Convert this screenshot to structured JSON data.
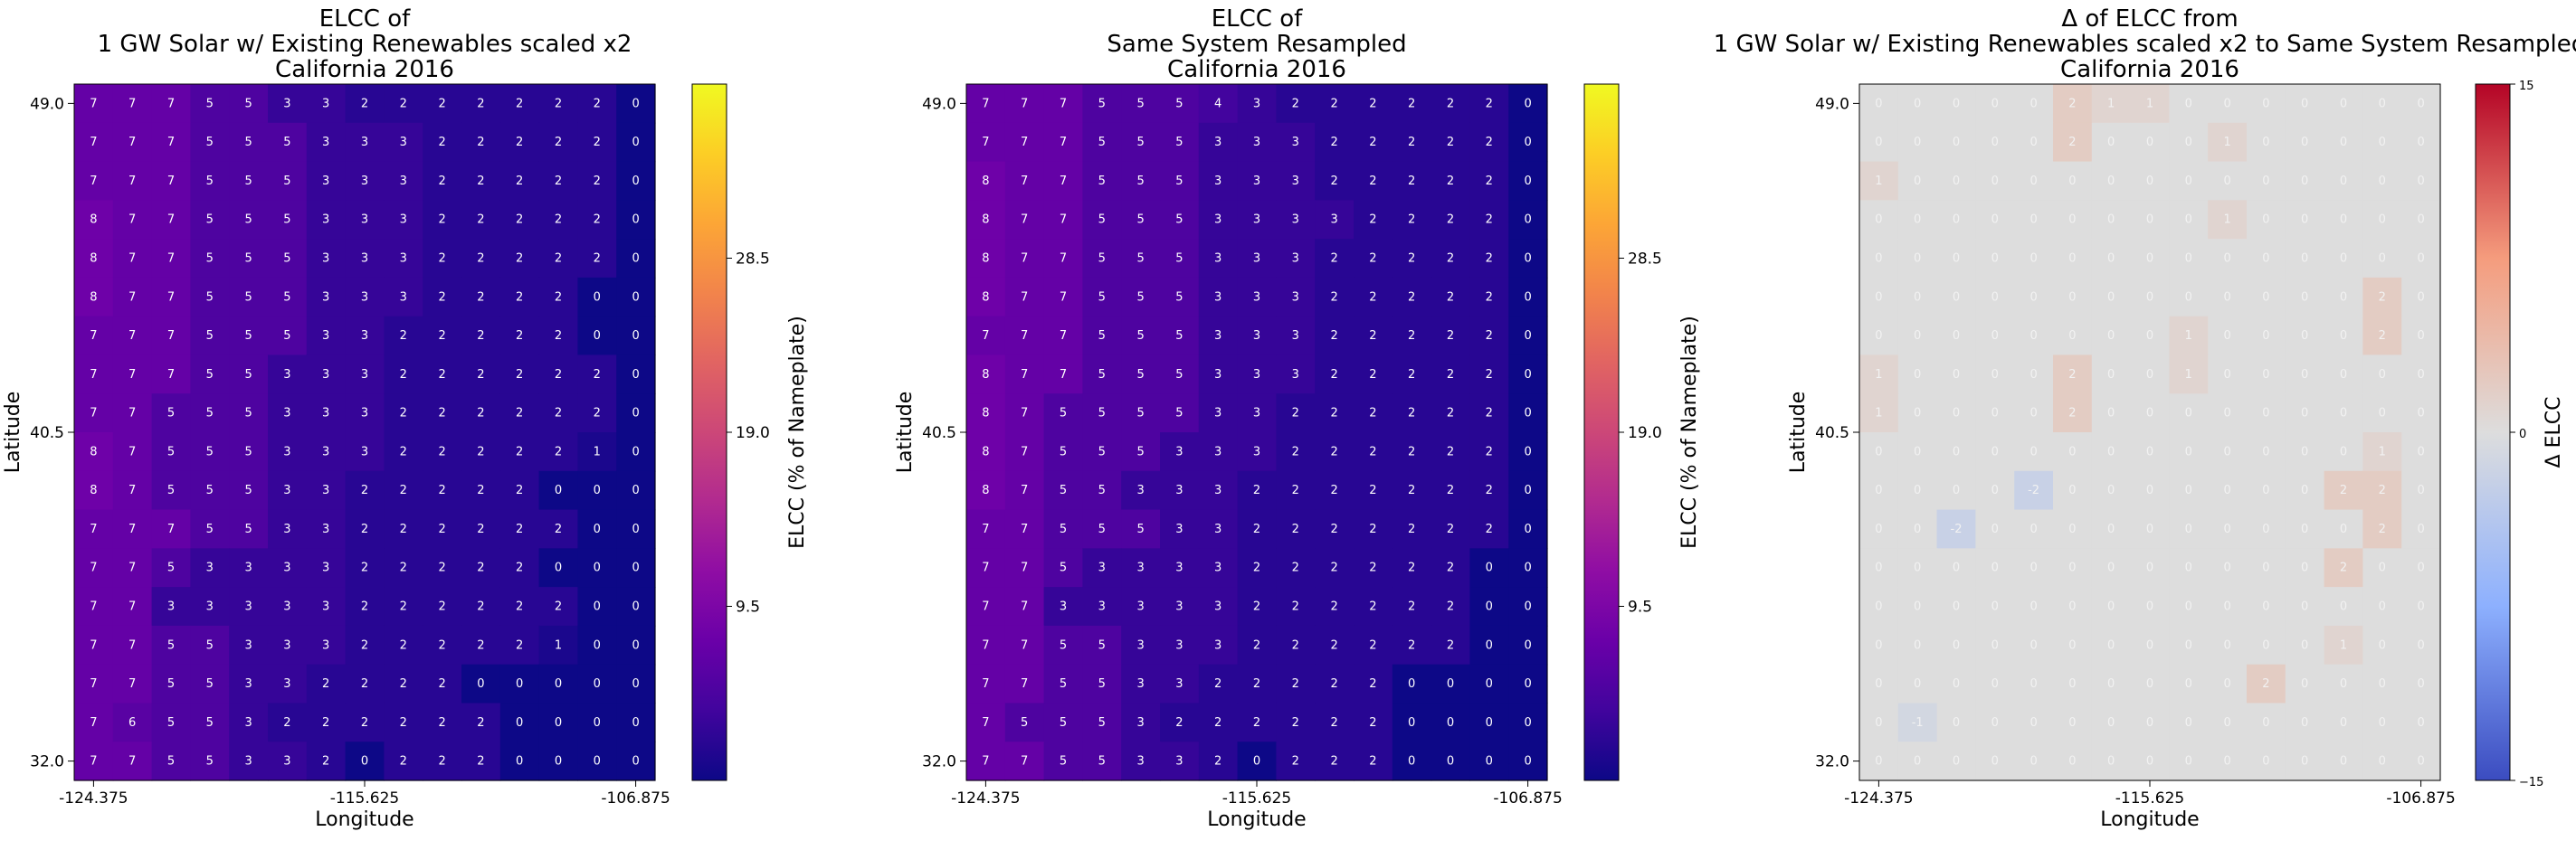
{
  "chart_data": [
    {
      "type": "heatmap",
      "title": [
        "ELCC of",
        "1 GW Solar w/ Existing Renewables scaled x2",
        "California 2016"
      ],
      "xlabel": "Longitude",
      "ylabel": "Latitude",
      "xticks": [
        "-124.375",
        "-115.625",
        "-106.875"
      ],
      "yticks": [
        "49.0",
        "40.5",
        "32.0"
      ],
      "colorbar": {
        "label": "ELCC (% of Nameplate)",
        "ticks": [
          "28.5",
          "19.0",
          "9.5"
        ],
        "tick_values": [
          28.5,
          19.0,
          9.5
        ],
        "range": [
          0,
          38
        ],
        "colormap": "plasma"
      },
      "grid": [
        [
          7,
          7,
          7,
          5,
          5,
          3,
          3,
          2,
          2,
          2,
          2,
          2,
          2,
          2,
          0
        ],
        [
          7,
          7,
          7,
          5,
          5,
          5,
          3,
          3,
          3,
          2,
          2,
          2,
          2,
          2,
          0
        ],
        [
          7,
          7,
          7,
          5,
          5,
          5,
          3,
          3,
          3,
          2,
          2,
          2,
          2,
          2,
          0
        ],
        [
          8,
          7,
          7,
          5,
          5,
          5,
          3,
          3,
          3,
          2,
          2,
          2,
          2,
          2,
          0
        ],
        [
          8,
          7,
          7,
          5,
          5,
          5,
          3,
          3,
          3,
          2,
          2,
          2,
          2,
          2,
          0
        ],
        [
          8,
          7,
          7,
          5,
          5,
          5,
          3,
          3,
          3,
          2,
          2,
          2,
          2,
          0,
          0
        ],
        [
          7,
          7,
          7,
          5,
          5,
          5,
          3,
          3,
          2,
          2,
          2,
          2,
          2,
          0,
          0
        ],
        [
          7,
          7,
          7,
          5,
          5,
          3,
          3,
          3,
          2,
          2,
          2,
          2,
          2,
          2,
          0
        ],
        [
          7,
          7,
          5,
          5,
          5,
          3,
          3,
          3,
          2,
          2,
          2,
          2,
          2,
          2,
          0
        ],
        [
          8,
          7,
          5,
          5,
          5,
          3,
          3,
          3,
          2,
          2,
          2,
          2,
          2,
          1,
          0
        ],
        [
          8,
          7,
          5,
          5,
          5,
          3,
          3,
          2,
          2,
          2,
          2,
          2,
          0,
          0,
          0
        ],
        [
          7,
          7,
          7,
          5,
          5,
          3,
          3,
          2,
          2,
          2,
          2,
          2,
          2,
          0,
          0
        ],
        [
          7,
          7,
          5,
          3,
          3,
          3,
          3,
          2,
          2,
          2,
          2,
          2,
          0,
          0,
          0
        ],
        [
          7,
          7,
          3,
          3,
          3,
          3,
          3,
          2,
          2,
          2,
          2,
          2,
          2,
          0,
          0
        ],
        [
          7,
          7,
          5,
          5,
          3,
          3,
          3,
          2,
          2,
          2,
          2,
          2,
          1,
          0,
          0
        ],
        [
          7,
          7,
          5,
          5,
          3,
          3,
          2,
          2,
          2,
          2,
          0,
          0,
          0,
          0,
          0
        ],
        [
          7,
          6,
          5,
          5,
          3,
          2,
          2,
          2,
          2,
          2,
          2,
          0,
          0,
          0,
          0
        ],
        [
          7,
          7,
          5,
          5,
          3,
          3,
          2,
          0,
          2,
          2,
          2,
          0,
          0,
          0,
          0
        ]
      ]
    },
    {
      "type": "heatmap",
      "title": [
        "ELCC of",
        "Same System Resampled",
        "California 2016"
      ],
      "xlabel": "Longitude",
      "ylabel": "Latitude",
      "xticks": [
        "-124.375",
        "-115.625",
        "-106.875"
      ],
      "yticks": [
        "49.0",
        "40.5",
        "32.0"
      ],
      "colorbar": {
        "label": "ELCC (% of Nameplate)",
        "ticks": [
          "28.5",
          "19.0",
          "9.5"
        ],
        "tick_values": [
          28.5,
          19.0,
          9.5
        ],
        "range": [
          0,
          38
        ],
        "colormap": "plasma"
      },
      "grid": [
        [
          7,
          7,
          7,
          5,
          5,
          5,
          4,
          3,
          2,
          2,
          2,
          2,
          2,
          2,
          0
        ],
        [
          7,
          7,
          7,
          5,
          5,
          5,
          3,
          3,
          3,
          2,
          2,
          2,
          2,
          2,
          0
        ],
        [
          8,
          7,
          7,
          5,
          5,
          5,
          3,
          3,
          3,
          2,
          2,
          2,
          2,
          2,
          0
        ],
        [
          8,
          7,
          7,
          5,
          5,
          5,
          3,
          3,
          3,
          3,
          2,
          2,
          2,
          2,
          0
        ],
        [
          8,
          7,
          7,
          5,
          5,
          5,
          3,
          3,
          3,
          2,
          2,
          2,
          2,
          2,
          0
        ],
        [
          8,
          7,
          7,
          5,
          5,
          5,
          3,
          3,
          3,
          2,
          2,
          2,
          2,
          2,
          0
        ],
        [
          7,
          7,
          7,
          5,
          5,
          5,
          3,
          3,
          3,
          2,
          2,
          2,
          2,
          2,
          0
        ],
        [
          8,
          7,
          7,
          5,
          5,
          5,
          3,
          3,
          3,
          2,
          2,
          2,
          2,
          2,
          0
        ],
        [
          8,
          7,
          5,
          5,
          5,
          5,
          3,
          3,
          2,
          2,
          2,
          2,
          2,
          2,
          0
        ],
        [
          8,
          7,
          5,
          5,
          5,
          3,
          3,
          3,
          2,
          2,
          2,
          2,
          2,
          2,
          0
        ],
        [
          8,
          7,
          5,
          5,
          3,
          3,
          3,
          2,
          2,
          2,
          2,
          2,
          2,
          2,
          0
        ],
        [
          7,
          7,
          5,
          5,
          5,
          3,
          3,
          2,
          2,
          2,
          2,
          2,
          2,
          2,
          0
        ],
        [
          7,
          7,
          5,
          3,
          3,
          3,
          3,
          2,
          2,
          2,
          2,
          2,
          2,
          0,
          0
        ],
        [
          7,
          7,
          3,
          3,
          3,
          3,
          3,
          2,
          2,
          2,
          2,
          2,
          2,
          0,
          0
        ],
        [
          7,
          7,
          5,
          5,
          3,
          3,
          3,
          2,
          2,
          2,
          2,
          2,
          2,
          0,
          0
        ],
        [
          7,
          7,
          5,
          5,
          3,
          3,
          2,
          2,
          2,
          2,
          2,
          0,
          0,
          0,
          0
        ],
        [
          7,
          5,
          5,
          5,
          3,
          2,
          2,
          2,
          2,
          2,
          2,
          0,
          0,
          0,
          0
        ],
        [
          7,
          7,
          5,
          5,
          3,
          3,
          2,
          0,
          2,
          2,
          2,
          0,
          0,
          0,
          0
        ]
      ]
    },
    {
      "type": "heatmap",
      "title": [
        "Δ of ELCC from",
        "1 GW Solar w/ Existing Renewables scaled x2 to Same System Resampled",
        "California 2016"
      ],
      "xlabel": "Longitude",
      "ylabel": "Latitude",
      "xticks": [
        "-124.375",
        "-115.625",
        "-106.875"
      ],
      "yticks": [
        "49.0",
        "40.5",
        "32.0"
      ],
      "colorbar": {
        "label": "Δ ELCC",
        "ticks": [
          "15",
          "0",
          "−15"
        ],
        "tick_values": [
          15,
          0,
          -15
        ],
        "range": [
          -15,
          15
        ],
        "colormap": "coolwarm"
      },
      "grid": [
        [
          0,
          0,
          0,
          0,
          0,
          2,
          1,
          1,
          0,
          0,
          0,
          0,
          0,
          0,
          0
        ],
        [
          0,
          0,
          0,
          0,
          0,
          2,
          0,
          0,
          0,
          1,
          0,
          0,
          0,
          0,
          0
        ],
        [
          1,
          0,
          0,
          0,
          0,
          0,
          0,
          0,
          0,
          0,
          0,
          0,
          0,
          0,
          0
        ],
        [
          0,
          0,
          0,
          0,
          0,
          0,
          0,
          0,
          0,
          1,
          0,
          0,
          0,
          0,
          0
        ],
        [
          0,
          0,
          0,
          0,
          0,
          0,
          0,
          0,
          0,
          0,
          0,
          0,
          0,
          0,
          0
        ],
        [
          0,
          0,
          0,
          0,
          0,
          0,
          0,
          0,
          0,
          0,
          0,
          0,
          0,
          2,
          0
        ],
        [
          0,
          0,
          0,
          0,
          0,
          0,
          0,
          0,
          1,
          0,
          0,
          0,
          0,
          2,
          0
        ],
        [
          1,
          0,
          0,
          0,
          0,
          2,
          0,
          0,
          1,
          0,
          0,
          0,
          0,
          0,
          0
        ],
        [
          1,
          0,
          0,
          0,
          0,
          2,
          0,
          0,
          0,
          0,
          0,
          0,
          0,
          0,
          0
        ],
        [
          0,
          0,
          0,
          0,
          0,
          0,
          0,
          0,
          0,
          0,
          0,
          0,
          0,
          1,
          0
        ],
        [
          0,
          0,
          0,
          0,
          -2,
          0,
          0,
          0,
          0,
          0,
          0,
          0,
          2,
          2,
          0
        ],
        [
          0,
          0,
          -2,
          0,
          0,
          0,
          0,
          0,
          0,
          0,
          0,
          0,
          0,
          2,
          0
        ],
        [
          0,
          0,
          0,
          0,
          0,
          0,
          0,
          0,
          0,
          0,
          0,
          0,
          2,
          0,
          0
        ],
        [
          0,
          0,
          0,
          0,
          0,
          0,
          0,
          0,
          0,
          0,
          0,
          0,
          0,
          0,
          0
        ],
        [
          0,
          0,
          0,
          0,
          0,
          0,
          0,
          0,
          0,
          0,
          0,
          0,
          1,
          0,
          0
        ],
        [
          0,
          0,
          0,
          0,
          0,
          0,
          0,
          0,
          0,
          0,
          2,
          0,
          0,
          0,
          0
        ],
        [
          0,
          -1,
          0,
          0,
          0,
          0,
          0,
          0,
          0,
          0,
          0,
          0,
          0,
          0,
          0
        ],
        [
          0,
          0,
          0,
          0,
          0,
          0,
          0,
          0,
          0,
          0,
          0,
          0,
          0,
          0,
          0
        ]
      ]
    }
  ]
}
